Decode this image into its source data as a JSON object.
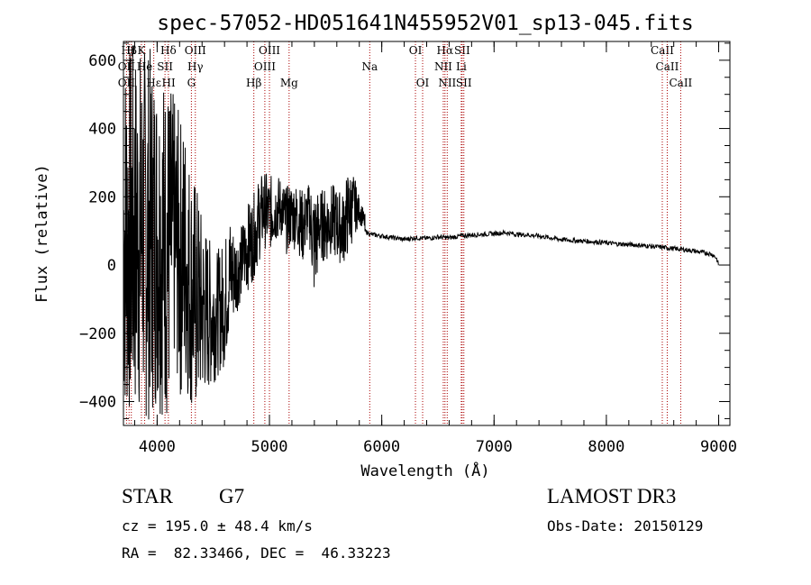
{
  "chart_data": {
    "type": "line",
    "title": "spec-57052-HD051641N455952V01_sp13-045.fits",
    "xlabel": "Wavelength (Å)",
    "ylabel": "Flux (relative)",
    "xlim": [
      3700,
      9100
    ],
    "ylim": [
      -470,
      655
    ],
    "xticks": [
      4000,
      5000,
      6000,
      7000,
      8000,
      9000
    ],
    "yticks": [
      -400,
      -200,
      0,
      200,
      400,
      600
    ],
    "series": [
      {
        "name": "spectrum",
        "x": [
          3700,
          3750,
          3800,
          3850,
          3900,
          3950,
          4000,
          4050,
          4100,
          4150,
          4200,
          4250,
          4300,
          4350,
          4400,
          4450,
          4500,
          4550,
          4600,
          4650,
          4700,
          4750,
          4800,
          4850,
          4900,
          4950,
          5000,
          5050,
          5100,
          5150,
          5200,
          5250,
          5300,
          5350,
          5400,
          5450,
          5500,
          5550,
          5600,
          5650,
          5700,
          5750,
          5800,
          5850,
          5900,
          6000,
          6100,
          6200,
          6300,
          6400,
          6500,
          6600,
          6700,
          6800,
          6900,
          7000,
          7100,
          7200,
          7300,
          7400,
          7500,
          7600,
          7700,
          7800,
          7900,
          8000,
          8100,
          8200,
          8300,
          8400,
          8500,
          8600,
          8700,
          8800,
          8900,
          8950,
          8980,
          9000
        ],
        "y": [
          0,
          50,
          150,
          250,
          120,
          180,
          100,
          60,
          -100,
          150,
          -120,
          -200,
          -300,
          -150,
          -250,
          -200,
          -300,
          -220,
          -150,
          -80,
          -100,
          -30,
          80,
          50,
          120,
          180,
          150,
          200,
          160,
          120,
          150,
          140,
          100,
          180,
          120,
          100,
          150,
          130,
          160,
          140,
          220,
          200,
          150,
          100,
          90,
          85,
          80,
          75,
          80,
          78,
          82,
          80,
          85,
          88,
          90,
          92,
          95,
          90,
          88,
          85,
          80,
          75,
          72,
          70,
          68,
          65,
          62,
          60,
          58,
          55,
          52,
          48,
          45,
          40,
          35,
          30,
          20,
          0
        ],
        "envelope": [
          [
            3700,
            -470,
            655
          ],
          [
            3750,
            -470,
            655
          ],
          [
            3800,
            -470,
            655
          ],
          [
            3850,
            -450,
            655
          ],
          [
            3900,
            -470,
            655
          ],
          [
            3950,
            -450,
            640
          ],
          [
            4000,
            -420,
            600
          ],
          [
            4050,
            -450,
            580
          ],
          [
            4100,
            -470,
            560
          ],
          [
            4150,
            -300,
            500
          ],
          [
            4200,
            -400,
            450
          ],
          [
            4250,
            -380,
            430
          ],
          [
            4300,
            -420,
            300
          ],
          [
            4350,
            -450,
            250
          ],
          [
            4400,
            -400,
            150
          ],
          [
            4450,
            -380,
            100
          ],
          [
            4500,
            -350,
            50
          ],
          [
            4550,
            -320,
            50
          ],
          [
            4600,
            -300,
            80
          ],
          [
            4650,
            -200,
            150
          ],
          [
            4700,
            -150,
            100
          ],
          [
            4750,
            -100,
            120
          ],
          [
            4800,
            -80,
            180
          ],
          [
            4850,
            -50,
            200
          ],
          [
            4900,
            0,
            250
          ],
          [
            4950,
            50,
            280
          ],
          [
            5000,
            40,
            260
          ],
          [
            5050,
            60,
            270
          ],
          [
            5100,
            80,
            260
          ],
          [
            5150,
            30,
            230
          ],
          [
            5200,
            50,
            250
          ],
          [
            5250,
            40,
            240
          ],
          [
            5300,
            0,
            220
          ],
          [
            5350,
            80,
            240
          ],
          [
            5400,
            -120,
            230
          ],
          [
            5450,
            20,
            220
          ],
          [
            5500,
            0,
            230
          ],
          [
            5550,
            30,
            240
          ],
          [
            5600,
            10,
            230
          ],
          [
            5650,
            0,
            210
          ],
          [
            5700,
            20,
            280
          ],
          [
            5750,
            80,
            270
          ],
          [
            5800,
            120,
            200
          ],
          [
            5850,
            100,
            150
          ]
        ]
      }
    ],
    "spectral_lines": [
      {
        "label": "Hβ",
        "wl": 3750,
        "row": 0
      },
      {
        "label": "H",
        "wl": 3770,
        "row": 0
      },
      {
        "label": "K",
        "wl": 3860,
        "row": 0
      },
      {
        "label": "Hδ",
        "wl": 4100,
        "row": 0
      },
      {
        "label": "OIII",
        "wl": 4340,
        "row": 0
      },
      {
        "label": "OIII",
        "wl": 5000,
        "row": 0
      },
      {
        "label": "OI",
        "wl": 6300,
        "row": 0
      },
      {
        "label": "Hα",
        "wl": 6563,
        "row": 0
      },
      {
        "label": "SII",
        "wl": 6716,
        "row": 0
      },
      {
        "label": "CaII",
        "wl": 8498,
        "row": 0
      },
      {
        "label": "OII",
        "wl": 3727,
        "row": 1
      },
      {
        "label": "He",
        "wl": 3889,
        "row": 1
      },
      {
        "label": "SII",
        "wl": 4070,
        "row": 1
      },
      {
        "label": "Hγ",
        "wl": 4340,
        "row": 1
      },
      {
        "label": "OIII",
        "wl": 4959,
        "row": 1
      },
      {
        "label": "Na",
        "wl": 5893,
        "row": 1
      },
      {
        "label": "NII",
        "wl": 6548,
        "row": 1
      },
      {
        "label": "Li",
        "wl": 6708,
        "row": 1
      },
      {
        "label": "CaII",
        "wl": 8542,
        "row": 1
      },
      {
        "label": "OII",
        "wl": 3727,
        "row": 2
      },
      {
        "label": "Hε",
        "wl": 3970,
        "row": 2
      },
      {
        "label": "HI",
        "wl": 4102,
        "row": 2
      },
      {
        "label": "G",
        "wl": 4305,
        "row": 2
      },
      {
        "label": "Hβ",
        "wl": 4861,
        "row": 2
      },
      {
        "label": "Mg",
        "wl": 5175,
        "row": 2
      },
      {
        "label": "OI",
        "wl": 6364,
        "row": 2
      },
      {
        "label": "NII",
        "wl": 6583,
        "row": 2
      },
      {
        "label": "SII",
        "wl": 6731,
        "row": 2
      },
      {
        "label": "CaII",
        "wl": 8662,
        "row": 2
      }
    ]
  },
  "info": {
    "object_class": "STAR",
    "subclass": "G7",
    "survey": "LAMOST DR3",
    "redshift": "cz = 195.0 ± 48.4 km/s",
    "obs_date": "Obs-Date: 20150129",
    "coords": "RA =  82.33466, DEC =  46.33223"
  }
}
